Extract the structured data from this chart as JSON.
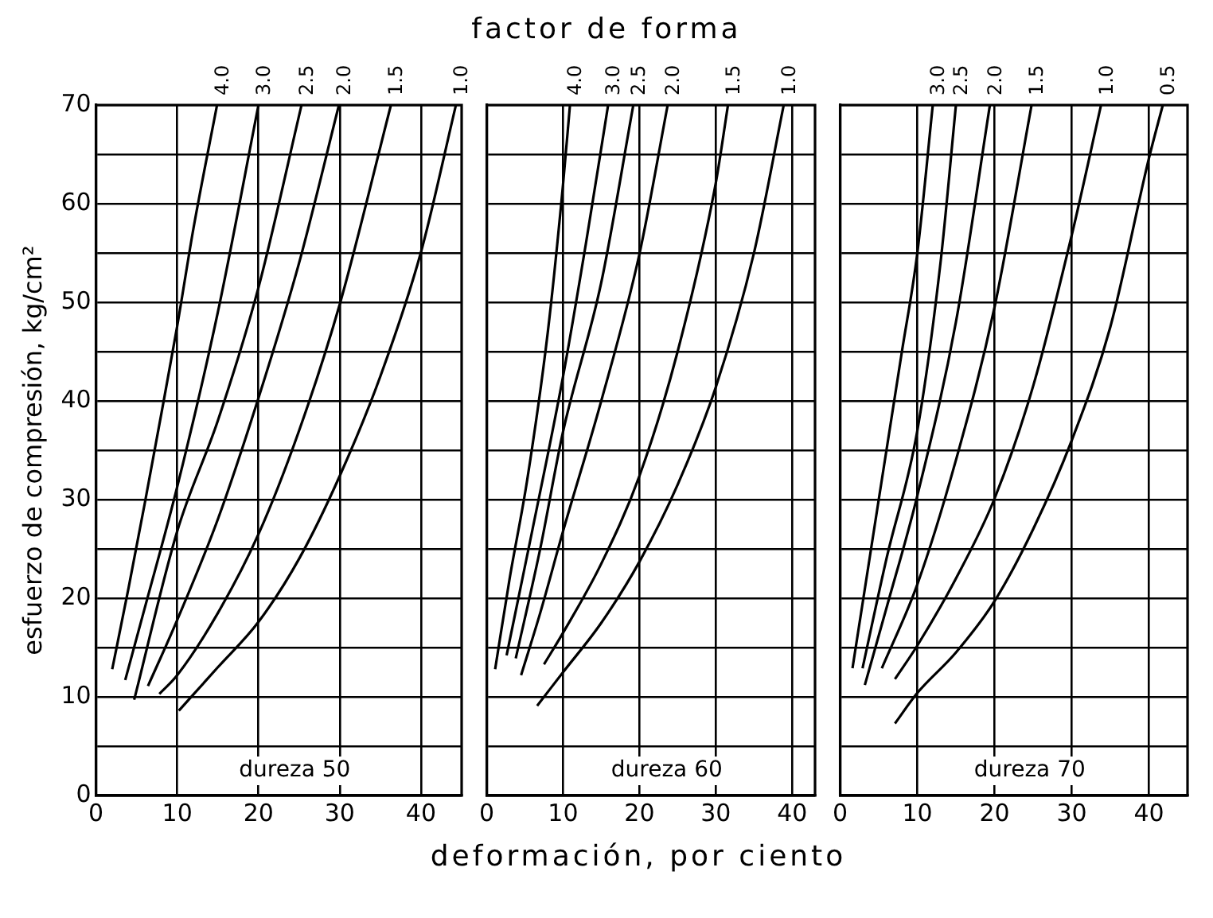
{
  "chart_data": [
    {
      "type": "line",
      "ylabel": "esfuerzo de compresión, kg/cm²",
      "annotations": [
        "dureza 50"
      ],
      "xlim": [
        0,
        45
      ],
      "ylim": [
        0,
        70
      ],
      "xticks": [
        0,
        10,
        20,
        30,
        40
      ],
      "yticks": [
        0,
        {
          "value": 5,
          "label": null
        },
        10,
        {
          "value": 15,
          "label": null
        },
        20,
        {
          "value": 25,
          "label": null
        },
        30,
        {
          "value": 35,
          "label": null
        },
        40,
        {
          "value": 45,
          "label": null
        },
        50,
        {
          "value": 55,
          "label": null
        },
        60,
        {
          "value": 65,
          "label": null
        },
        70
      ],
      "grid": true,
      "marker": "none",
      "line_style": "solid",
      "series": [
        {
          "name": "4.0",
          "color": "#000000",
          "x": [
            2.0,
            4,
            6,
            8,
            10,
            12,
            14.9
          ],
          "values": [
            12.8,
            21,
            29.6,
            38.5,
            47.6,
            57.5,
            70
          ]
        },
        {
          "name": "3.0",
          "color": "#000000",
          "x": [
            3.6,
            6,
            10,
            15,
            20
          ],
          "values": [
            11.7,
            19,
            31.3,
            49,
            70
          ]
        },
        {
          "name": "2.5",
          "color": "#000000",
          "x": [
            4.7,
            10,
            15,
            20,
            25.3
          ],
          "values": [
            9.7,
            26.8,
            38,
            51.5,
            70
          ]
        },
        {
          "name": "2.0",
          "color": "#000000",
          "x": [
            6.4,
            10,
            15,
            20,
            25,
            29.9
          ],
          "values": [
            11.1,
            17.8,
            28,
            40.3,
            54,
            70
          ]
        },
        {
          "name": "1.5",
          "color": "#000000",
          "x": [
            7.8,
            10,
            15,
            20,
            25,
            30,
            36.3
          ],
          "values": [
            10.3,
            12.2,
            18.5,
            26.5,
            37,
            49.8,
            70
          ]
        },
        {
          "name": "1.0",
          "color": "#000000",
          "x": [
            10.2,
            15,
            20,
            25,
            30,
            35,
            40,
            44.3
          ],
          "values": [
            8.6,
            13,
            17.6,
            24,
            32.4,
            42.5,
            55.1,
            70
          ]
        }
      ]
    },
    {
      "type": "line",
      "title": "factor de forma",
      "xlabel": "deformación, por ciento",
      "annotations": [
        "dureza 60"
      ],
      "tick_labels": "x",
      "xlim": [
        0,
        43
      ],
      "ylim": [
        0,
        70
      ],
      "xticks": [
        0,
        10,
        20,
        30,
        40
      ],
      "yticks": [
        0,
        5,
        10,
        15,
        20,
        25,
        30,
        35,
        40,
        45,
        50,
        55,
        60,
        65,
        70
      ],
      "grid": true,
      "marker": "none",
      "line_style": "solid",
      "series": [
        {
          "name": "4.0",
          "color": "#000000",
          "x": [
            1.1,
            3,
            5.3,
            8,
            10,
            10.9
          ],
          "values": [
            12.8,
            22,
            32,
            47,
            62,
            70
          ]
        },
        {
          "name": "3.0",
          "color": "#000000",
          "x": [
            2.6,
            6,
            10,
            13,
            15.9
          ],
          "values": [
            14.2,
            27,
            42.5,
            56,
            70
          ]
        },
        {
          "name": "2.5",
          "color": "#000000",
          "x": [
            3.8,
            7,
            10,
            15,
            19.2
          ],
          "values": [
            13.9,
            25,
            36.9,
            52,
            70
          ]
        },
        {
          "name": "2.0",
          "color": "#000000",
          "x": [
            4.5,
            7,
            10,
            15,
            20,
            23.7
          ],
          "values": [
            12.2,
            18.5,
            26.8,
            40,
            54.9,
            70
          ]
        },
        {
          "name": "1.5",
          "color": "#000000",
          "x": [
            7.5,
            10,
            15,
            20,
            25,
            30,
            31.6
          ],
          "values": [
            13.3,
            16.5,
            23.5,
            32.4,
            45,
            62.1,
            70
          ]
        },
        {
          "name": "1.0",
          "color": "#000000",
          "x": [
            6.6,
            10,
            15,
            20,
            25,
            30,
            35,
            38.9
          ],
          "values": [
            9.1,
            12.5,
            17.5,
            23.7,
            31.5,
            41.4,
            55,
            70
          ]
        }
      ]
    },
    {
      "type": "line",
      "annotations": [
        "dureza 70"
      ],
      "tick_labels": "x",
      "xlim": [
        0,
        45
      ],
      "ylim": [
        0,
        70
      ],
      "xticks": [
        0,
        10,
        20,
        30,
        40
      ],
      "yticks": [
        0,
        5,
        10,
        15,
        20,
        25,
        30,
        35,
        40,
        45,
        50,
        55,
        60,
        65,
        70
      ],
      "grid": true,
      "marker": "none",
      "line_style": "solid",
      "series": [
        {
          "name": "3.0",
          "color": "#000000",
          "x": [
            1.6,
            5,
            8,
            10,
            12
          ],
          "values": [
            12.9,
            30,
            45,
            55,
            70
          ]
        },
        {
          "name": "2.5",
          "color": "#000000",
          "x": [
            2.9,
            6,
            10,
            13,
            15
          ],
          "values": [
            12.9,
            24,
            37,
            54,
            70
          ]
        },
        {
          "name": "2.0",
          "color": "#000000",
          "x": [
            3.2,
            6,
            10,
            15,
            19.4
          ],
          "values": [
            11.2,
            19,
            30.4,
            48,
            70
          ]
        },
        {
          "name": "1.5",
          "color": "#000000",
          "x": [
            5.4,
            10,
            15,
            20,
            24.8
          ],
          "values": [
            12.9,
            21.4,
            34,
            49.5,
            70
          ]
        },
        {
          "name": "1.0",
          "color": "#000000",
          "x": [
            7.1,
            10,
            15,
            20,
            25,
            30,
            33.8
          ],
          "values": [
            11.8,
            15.2,
            22,
            30.1,
            41.5,
            56.8,
            70
          ]
        },
        {
          "name": "0.5",
          "color": "#000000",
          "x": [
            7.1,
            10,
            15,
            20,
            25,
            30,
            35,
            40,
            41.8
          ],
          "values": [
            7.3,
            10.4,
            14.5,
            19.7,
            27,
            36,
            47.5,
            64.6,
            70
          ]
        }
      ]
    }
  ]
}
